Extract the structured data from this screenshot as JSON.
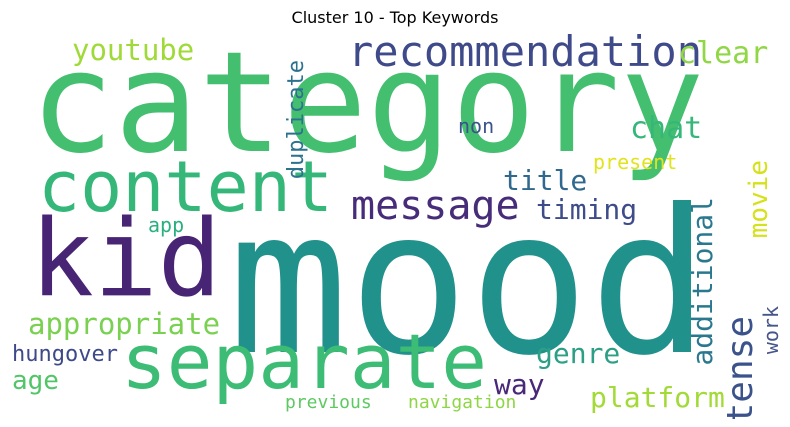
{
  "title": "Cluster 10 - Top Keywords",
  "words": [
    {
      "text": "category",
      "color": "#44bf70"
    },
    {
      "text": "mood",
      "color": "#21918c"
    },
    {
      "text": "kid",
      "color": "#482475"
    },
    {
      "text": "content",
      "color": "#35b779"
    },
    {
      "text": "separate",
      "color": "#3cbc74"
    },
    {
      "text": "recommendation",
      "color": "#3e4a89"
    },
    {
      "text": "message",
      "color": "#472c7a"
    },
    {
      "text": "youtube",
      "color": "#a0da39"
    },
    {
      "text": "clear",
      "color": "#8fd744"
    },
    {
      "text": "chat",
      "color": "#35b779"
    },
    {
      "text": "non",
      "color": "#3b528b"
    },
    {
      "text": "duplicate",
      "color": "#2c728e"
    },
    {
      "text": "present",
      "color": "#e1e31c"
    },
    {
      "text": "title",
      "color": "#31688e"
    },
    {
      "text": "timing",
      "color": "#3e4c8a"
    },
    {
      "text": "movie",
      "color": "#d5e21a"
    },
    {
      "text": "app",
      "color": "#2ab07f"
    },
    {
      "text": "appropriate",
      "color": "#7ad151"
    },
    {
      "text": "additional",
      "color": "#2a788e"
    },
    {
      "text": "tense",
      "color": "#3b528b"
    },
    {
      "text": "work",
      "color": "#46568a"
    },
    {
      "text": "genre",
      "color": "#2c9f86"
    },
    {
      "text": "hungover",
      "color": "#3e4989"
    },
    {
      "text": "age",
      "color": "#52c569"
    },
    {
      "text": "way",
      "color": "#482878"
    },
    {
      "text": "platform",
      "color": "#a2da37"
    },
    {
      "text": "previous",
      "color": "#5ec962"
    },
    {
      "text": "navigation",
      "color": "#8ed645"
    }
  ]
}
